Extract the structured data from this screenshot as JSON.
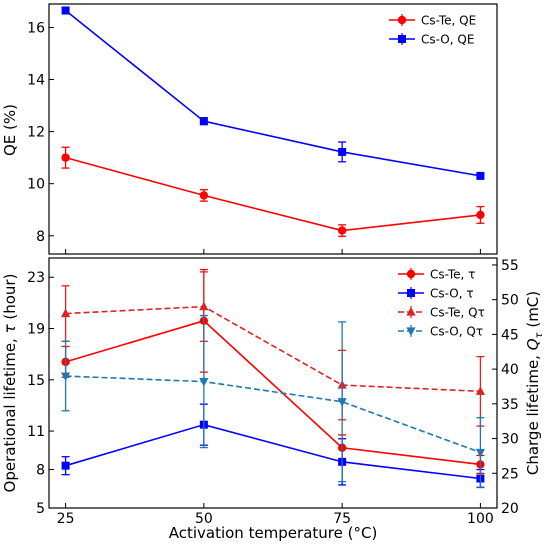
{
  "chart_data": [
    {
      "type": "line",
      "x": [
        25,
        50,
        75,
        100
      ],
      "xlim": [
        22,
        103
      ],
      "ylim": [
        7.3,
        16.9
      ],
      "xticks": [
        25,
        50,
        75,
        100
      ],
      "yticks": [
        8,
        10,
        12,
        14,
        16
      ],
      "ytick_labels": [
        "8",
        "10",
        "12",
        "14",
        "16"
      ],
      "ylabel": "QE (%)",
      "xlabel": "",
      "legend_position": "top-right",
      "series": [
        {
          "name": "Cs-Te, QE",
          "values": [
            11.0,
            9.55,
            8.2,
            8.8
          ],
          "errors": [
            0.4,
            0.22,
            0.22,
            0.32
          ],
          "color": "#ff0000",
          "marker": "circle",
          "dash": "solid"
        },
        {
          "name": "Cs-O, QE",
          "values": [
            16.65,
            12.4,
            11.22,
            10.3
          ],
          "errors": [
            0.13,
            0.13,
            0.38,
            0.08
          ],
          "color": "#0000ff",
          "marker": "square",
          "dash": "solid"
        }
      ]
    },
    {
      "type": "line",
      "x": [
        25,
        50,
        75,
        100
      ],
      "xlim": [
        22,
        103
      ],
      "ylim": [
        5,
        24.5
      ],
      "right_ylim": [
        20,
        56
      ],
      "xticks": [
        25,
        50,
        75,
        100
      ],
      "xtick_labels": [
        "25",
        "50",
        "75",
        "100"
      ],
      "yticks": [
        5,
        8,
        11,
        15,
        19,
        23
      ],
      "ytick_labels": [
        "5",
        "8",
        "11",
        "15",
        "19",
        "23"
      ],
      "right_yticks": [
        20,
        25,
        30,
        35,
        40,
        45,
        50,
        55
      ],
      "right_ytick_labels": [
        "20",
        "25",
        "30",
        "35",
        "40",
        "45",
        "50",
        "55"
      ],
      "xlabel": "Activation temperature (°C)",
      "ylabel_main": "Operational lifetime, ",
      "ylabel_symbol": "τ",
      "ylabel_unit": " (hour)",
      "right_ylabel_main": "Charge lifetime, ",
      "right_ylabel_symbol": "Q",
      "right_ylabel_sub": "τ",
      "right_ylabel_unit": " (mC)",
      "legend_position": "top-right",
      "series": [
        {
          "name": "Cs-Te, τ",
          "axis": "left",
          "values": [
            16.4,
            19.6,
            9.7,
            8.4
          ],
          "errors": [
            1.2,
            4.0,
            1.0,
            0.7
          ],
          "color": "#ff0000",
          "marker": "circle",
          "dash": "solid"
        },
        {
          "name": "Cs-O, τ",
          "axis": "left",
          "values": [
            8.3,
            11.5,
            8.6,
            7.3
          ],
          "errors": [
            0.7,
            1.6,
            1.8,
            0.7
          ],
          "color": "#0000ff",
          "marker": "square",
          "dash": "solid"
        },
        {
          "name": "Cs-Te, Qτ",
          "axis": "right",
          "values": [
            48,
            49,
            37.7,
            36.8
          ],
          "errors": [
            4,
            5,
            5,
            5
          ],
          "color": "#dd2222",
          "marker": "triangle-up",
          "dash": "dashed"
        },
        {
          "name": "Cs-O, Qτ",
          "axis": "right",
          "values": [
            39,
            38.2,
            35.3,
            28
          ],
          "errors": [
            5,
            9.5,
            11.5,
            5
          ],
          "color": "#1f77b4",
          "marker": "triangle-down",
          "dash": "dashed"
        }
      ]
    }
  ]
}
